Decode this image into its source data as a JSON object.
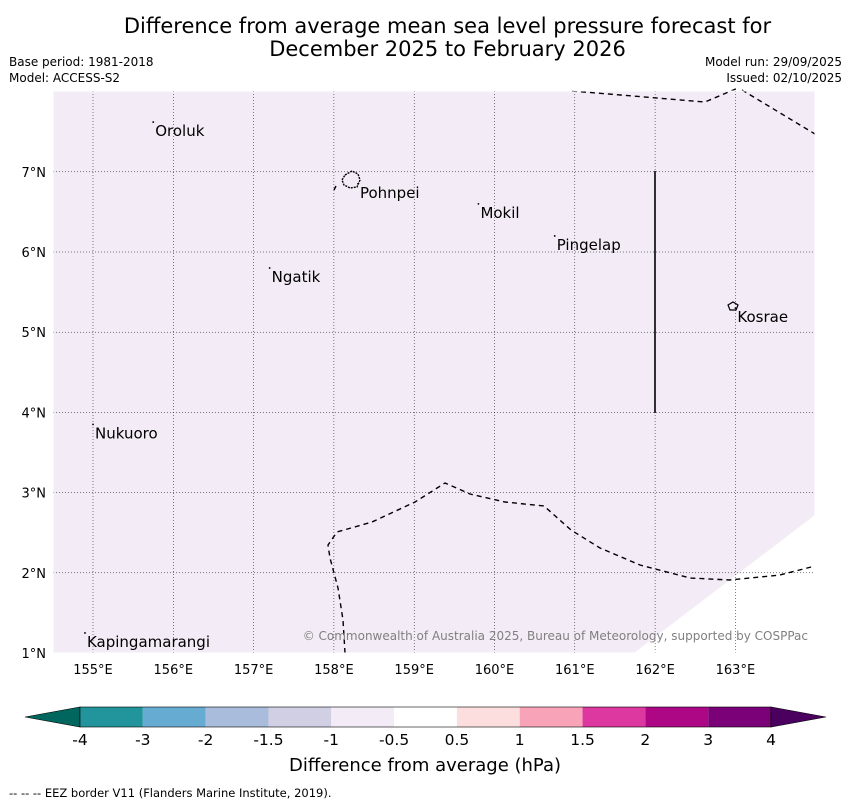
{
  "title_line1": "Difference from average mean sea level pressure forecast for",
  "title_line2": "December 2025 to February 2026",
  "base_period": "Base period: 1981-2018",
  "model": "Model: ACCESS-S2",
  "model_run": "Model run: 29/09/2025",
  "issued": "Issued: 02/10/2025",
  "copyright": "© Commonwealth of Australia 2025, Bureau of Meteorology, supported by COSPPac",
  "colorbar": {
    "label": "Difference from average (hPa)",
    "ticks": [
      "-4",
      "-3",
      "-2",
      "-1.5",
      "-1",
      "-0.5",
      "0.5",
      "1",
      "1.5",
      "2",
      "3",
      "4"
    ],
    "colors": {
      "below_min": "#00665e",
      "bins": [
        "#21959b",
        "#66abd2",
        "#a9bcdc",
        "#d0cfe3",
        "#f3ebf5",
        "#ffffff",
        "#fddede",
        "#f8a3b8",
        "#dd37a0",
        "#ad0786",
        "#7a0177"
      ],
      "above_max": "#4b0060"
    }
  },
  "map": {
    "fill_color": "#f3ebf5",
    "lon_range": [
      154.5,
      164.0
    ],
    "lat_range": [
      1.0,
      8.0
    ],
    "lon_ticks": [
      "155°E",
      "156°E",
      "157°E",
      "158°E",
      "159°E",
      "160°E",
      "161°E",
      "162°E",
      "163°E"
    ],
    "lat_ticks": [
      "1°N",
      "2°N",
      "3°N",
      "4°N",
      "5°N",
      "6°N",
      "7°N"
    ],
    "places": [
      {
        "name": "Oroluk",
        "lon": 155.75,
        "lat": 7.62
      },
      {
        "name": "Pohnpei",
        "lon": 158.3,
        "lat": 6.85
      },
      {
        "name": "Mokil",
        "lon": 159.8,
        "lat": 6.6
      },
      {
        "name": "Pingelap",
        "lon": 160.75,
        "lat": 6.2
      },
      {
        "name": "Ngatik",
        "lon": 157.2,
        "lat": 5.8
      },
      {
        "name": "Kosrae",
        "lon": 163.0,
        "lat": 5.3
      },
      {
        "name": "Nukuoro",
        "lon": 155.0,
        "lat": 3.85
      },
      {
        "name": "Kapingamarangi",
        "lon": 154.9,
        "lat": 1.25
      }
    ]
  },
  "footnote": "--  --  -- EEZ border V11 (Flanders Marine Institute, 2019)."
}
